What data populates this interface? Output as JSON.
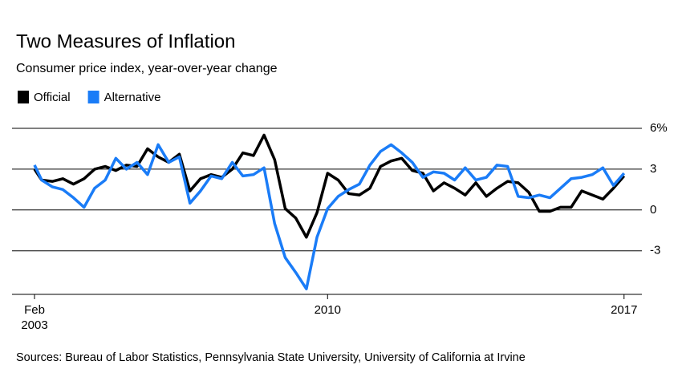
{
  "chart_data": {
    "type": "line",
    "title": "Two Measures of Inflation",
    "subtitle": "Consumer price index, year-over-year change",
    "source": "Sources: Bureau of Labor Statistics, Pennsylvania State University, University of California at Irvine",
    "x": [
      2003.08,
      2003.25,
      2003.5,
      2003.75,
      2004,
      2004.25,
      2004.5,
      2004.75,
      2005,
      2005.25,
      2005.5,
      2005.75,
      2006,
      2006.25,
      2006.5,
      2006.75,
      2007,
      2007.25,
      2007.5,
      2007.75,
      2008,
      2008.25,
      2008.5,
      2008.75,
      2009,
      2009.25,
      2009.5,
      2009.75,
      2010,
      2010.25,
      2010.5,
      2010.75,
      2011,
      2011.25,
      2011.5,
      2011.75,
      2012,
      2012.25,
      2012.5,
      2012.75,
      2013,
      2013.25,
      2013.5,
      2013.75,
      2014,
      2014.25,
      2014.5,
      2014.75,
      2015,
      2015.25,
      2015.5,
      2015.75,
      2016,
      2016.25,
      2016.5,
      2016.75,
      2017
    ],
    "series": [
      {
        "name": "Official",
        "color": "#000000",
        "values": [
          3.0,
          2.2,
          2.1,
          2.3,
          1.9,
          2.3,
          3.0,
          3.2,
          2.9,
          3.3,
          3.2,
          4.5,
          3.9,
          3.5,
          4.1,
          1.4,
          2.3,
          2.6,
          2.4,
          3.0,
          4.2,
          4.0,
          5.5,
          3.7,
          0.1,
          -0.6,
          -2.0,
          -0.2,
          2.7,
          2.2,
          1.2,
          1.1,
          1.6,
          3.2,
          3.6,
          3.8,
          2.9,
          2.7,
          1.4,
          2.0,
          1.6,
          1.1,
          2.0,
          1.0,
          1.6,
          2.1,
          2.0,
          1.3,
          -0.1,
          -0.1,
          0.2,
          0.2,
          1.4,
          1.1,
          0.8,
          1.6,
          2.5
        ]
      },
      {
        "name": "Alternative",
        "color": "#1a7cf7",
        "values": [
          3.3,
          2.2,
          1.7,
          1.5,
          0.9,
          0.2,
          1.6,
          2.2,
          3.8,
          3.0,
          3.5,
          2.6,
          4.8,
          3.5,
          3.9,
          0.5,
          1.4,
          2.5,
          2.3,
          3.5,
          2.5,
          2.6,
          3.1,
          -1.0,
          -3.5,
          -4.6,
          -5.8,
          -2.0,
          0.1,
          1.0,
          1.5,
          1.9,
          3.3,
          4.3,
          4.8,
          4.2,
          3.5,
          2.4,
          2.8,
          2.7,
          2.2,
          3.1,
          2.2,
          2.4,
          3.3,
          3.2,
          1.0,
          0.9,
          1.1,
          0.9,
          1.6,
          2.3,
          2.4,
          2.6,
          3.1,
          1.8,
          2.7
        ]
      }
    ],
    "xlim": [
      2003.08,
      2017.08
    ],
    "xticks": [
      {
        "value": 2003.08,
        "label": "Feb 2003"
      },
      2010,
      2017
    ],
    "ylim": [
      -6.2,
      6
    ],
    "yticks": [
      {
        "value": 6,
        "label": "6%"
      },
      3,
      0,
      -3
    ],
    "grid": true
  }
}
